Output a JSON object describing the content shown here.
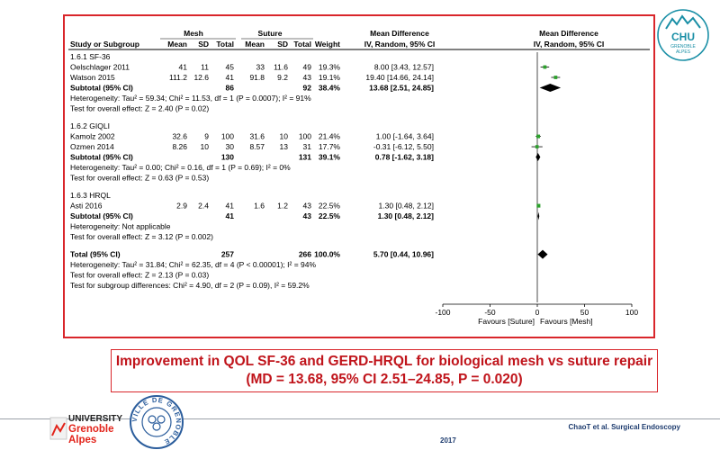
{
  "slide": {
    "caption_line1": "Improvement in QOL SF-36 and GERD-HRQL for biological mesh vs suture repair",
    "caption_line2": "(MD = 13.68, 95% CI 2.51–24.85, P = 0.020)",
    "citation": "ChaoT et al. Surgical Endoscopy",
    "year": "2017",
    "chu_logo": {
      "top": "CHU",
      "sub1": "GRENOBLE",
      "sub2": "ALPES"
    },
    "university_logo": {
      "l1": "UNIVERSITY",
      "l2": "Grenoble",
      "l3": "Alpes"
    },
    "city_seal": {
      "text": "VILLE DE GRENOBLE"
    },
    "colors": {
      "frame": "#d9262b",
      "caption": "#c0141b",
      "chu_teal": "#1a8fa6",
      "marker": "#2ca02c",
      "footer": "#1d3b6e"
    }
  },
  "chart_data": {
    "type": "forest",
    "headers": {
      "group1": "Mesh",
      "group2": "Suture",
      "md": "Mean Difference",
      "md_sub": "IV, Random, 95% CI",
      "plot_title": "Mean Difference",
      "plot_sub": "IV, Random, 95% CI",
      "cols": [
        "Study or Subgroup",
        "Mean",
        "SD",
        "Total",
        "Mean",
        "SD",
        "Total",
        "Weight"
      ]
    },
    "rows": [
      {
        "kind": "subgroup",
        "label": "1.6.1 SF-36"
      },
      {
        "kind": "study",
        "label": "Oelschlager 2011",
        "m1": "41",
        "sd1": "11",
        "n1": "45",
        "m2": "33",
        "sd2": "11.6",
        "n2": "49",
        "w": "19.3%",
        "ci": "8.00 [3.43, 12.57]",
        "est": 8.0,
        "lo": 3.43,
        "hi": 12.57,
        "size": 19.3
      },
      {
        "kind": "study",
        "label": "Watson 2015",
        "m1": "111.2",
        "sd1": "12.6",
        "n1": "41",
        "m2": "91.8",
        "sd2": "9.2",
        "n2": "43",
        "w": "19.1%",
        "ci": "19.40 [14.66, 24.14]",
        "est": 19.4,
        "lo": 14.66,
        "hi": 24.14,
        "size": 19.1
      },
      {
        "kind": "subtotal",
        "label": "Subtotal (95% CI)",
        "n1": "86",
        "n2": "92",
        "w": "38.4%",
        "ci": "13.68 [2.51, 24.85]",
        "est": 13.68,
        "lo": 2.51,
        "hi": 24.85
      },
      {
        "kind": "note",
        "label": "Heterogeneity: Tau² = 59.34; Chi² = 11.53, df = 1 (P = 0.0007); I² = 91%"
      },
      {
        "kind": "note",
        "label": "Test for overall effect: Z = 2.40 (P = 0.02)"
      },
      {
        "kind": "blank"
      },
      {
        "kind": "subgroup",
        "label": "1.6.2 GIQLI"
      },
      {
        "kind": "study",
        "label": "Kamolz 2002",
        "m1": "32.6",
        "sd1": "9",
        "n1": "100",
        "m2": "31.6",
        "sd2": "10",
        "n2": "100",
        "w": "21.4%",
        "ci": "1.00 [-1.64, 3.64]",
        "est": 1.0,
        "lo": -1.64,
        "hi": 3.64,
        "size": 21.4
      },
      {
        "kind": "study",
        "label": "Ozmen 2014",
        "m1": "8.26",
        "sd1": "10",
        "n1": "30",
        "m2": "8.57",
        "sd2": "13",
        "n2": "31",
        "w": "17.7%",
        "ci": "-0.31 [-6.12, 5.50]",
        "est": -0.31,
        "lo": -6.12,
        "hi": 5.5,
        "size": 17.7
      },
      {
        "kind": "subtotal",
        "label": "Subtotal (95% CI)",
        "n1": "130",
        "n2": "131",
        "w": "39.1%",
        "ci": "0.78 [-1.62, 3.18]",
        "est": 0.78,
        "lo": -1.62,
        "hi": 3.18
      },
      {
        "kind": "note",
        "label": "Heterogeneity: Tau² = 0.00; Chi² = 0.16, df = 1 (P = 0.69); I² = 0%"
      },
      {
        "kind": "note",
        "label": "Test for overall effect: Z = 0.63 (P = 0.53)"
      },
      {
        "kind": "blank"
      },
      {
        "kind": "subgroup",
        "label": "1.6.3 HRQL"
      },
      {
        "kind": "study",
        "label": "Asti 2016",
        "m1": "2.9",
        "sd1": "2.4",
        "n1": "41",
        "m2": "1.6",
        "sd2": "1.2",
        "n2": "43",
        "w": "22.5%",
        "ci": "1.30 [0.48, 2.12]",
        "est": 1.3,
        "lo": 0.48,
        "hi": 2.12,
        "size": 22.5
      },
      {
        "kind": "subtotal",
        "label": "Subtotal (95% CI)",
        "n1": "41",
        "n2": "43",
        "w": "22.5%",
        "ci": "1.30 [0.48, 2.12]",
        "est": 1.3,
        "lo": 0.48,
        "hi": 2.12
      },
      {
        "kind": "note",
        "label": "Heterogeneity: Not applicable"
      },
      {
        "kind": "note",
        "label": "Test for overall effect: Z = 3.12 (P = 0.002)"
      },
      {
        "kind": "blank"
      },
      {
        "kind": "total",
        "label": "Total (95% CI)",
        "n1": "257",
        "n2": "266",
        "w": "100.0%",
        "ci": "5.70 [0.44, 10.96]",
        "est": 5.7,
        "lo": 0.44,
        "hi": 10.96
      },
      {
        "kind": "note",
        "label": "Heterogeneity: Tau² = 31.84; Chi² = 62.35, df = 4 (P < 0.00001); I² = 94%"
      },
      {
        "kind": "note",
        "label": "Test for overall effect: Z = 2.13 (P = 0.03)"
      },
      {
        "kind": "note",
        "label": "Test for subgroup differences: Chi² = 4.90, df = 2 (P = 0.09), I² = 59.2%"
      }
    ],
    "axis": {
      "xlim": [
        -100,
        100
      ],
      "ticks": [
        -100,
        -50,
        0,
        50,
        100
      ],
      "left_label": "Favours [Suture]",
      "right_label": "Favours [Mesh]"
    }
  }
}
